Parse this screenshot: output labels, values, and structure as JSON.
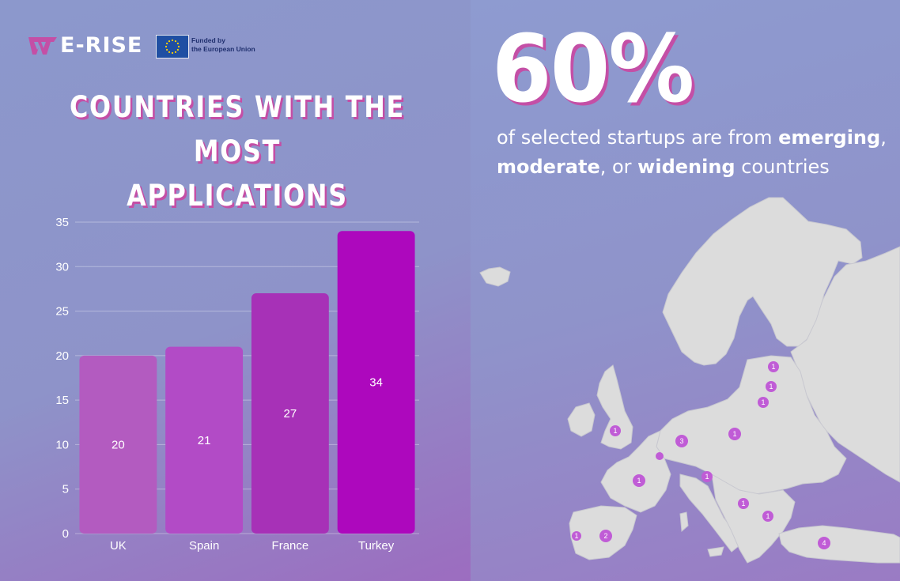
{
  "brand": {
    "name": "E-RISE",
    "eu_line1": "Funded by",
    "eu_line2": "the European Union"
  },
  "title": {
    "line1": "COUNTRIES WITH THE MOST",
    "line2": "APPLICATIONS"
  },
  "colors": {
    "accent_shadow": "#c44fa6",
    "bar_uk": "#b35bc0",
    "bar_spain": "#b24bc6",
    "bar_france": "#a731b7",
    "bar_turkey": "#ad08bd",
    "marker": "#c05cd6",
    "map_land": "#dcdcdc"
  },
  "chart_data": {
    "type": "bar",
    "title": "COUNTRIES WITH THE MOST APPLICATIONS",
    "categories": [
      "UK",
      "Spain",
      "France",
      "Turkey"
    ],
    "values": [
      20,
      21,
      27,
      34
    ],
    "ylim": [
      0,
      35
    ],
    "yticks": [
      0,
      5,
      10,
      15,
      20,
      25,
      30,
      35
    ],
    "grid": true,
    "data_labels": true
  },
  "stat": {
    "value": "60%",
    "text_a": "of selected startups are from ",
    "emph1": "emerging",
    "text_b": ",",
    "emph2": "moderate",
    "text_c": ", or ",
    "emph3": "widening",
    "text_d": " countries"
  },
  "map_markers": [
    {
      "label": "1"
    },
    {
      "label": "1"
    },
    {
      "label": "1"
    },
    {
      "label": "1"
    },
    {
      "label": "3"
    },
    {
      "label": "1"
    },
    {
      "label": ""
    },
    {
      "label": "1"
    },
    {
      "label": "1"
    },
    {
      "label": "1"
    },
    {
      "label": "1"
    },
    {
      "label": "1"
    },
    {
      "label": "2"
    },
    {
      "label": "4"
    }
  ]
}
